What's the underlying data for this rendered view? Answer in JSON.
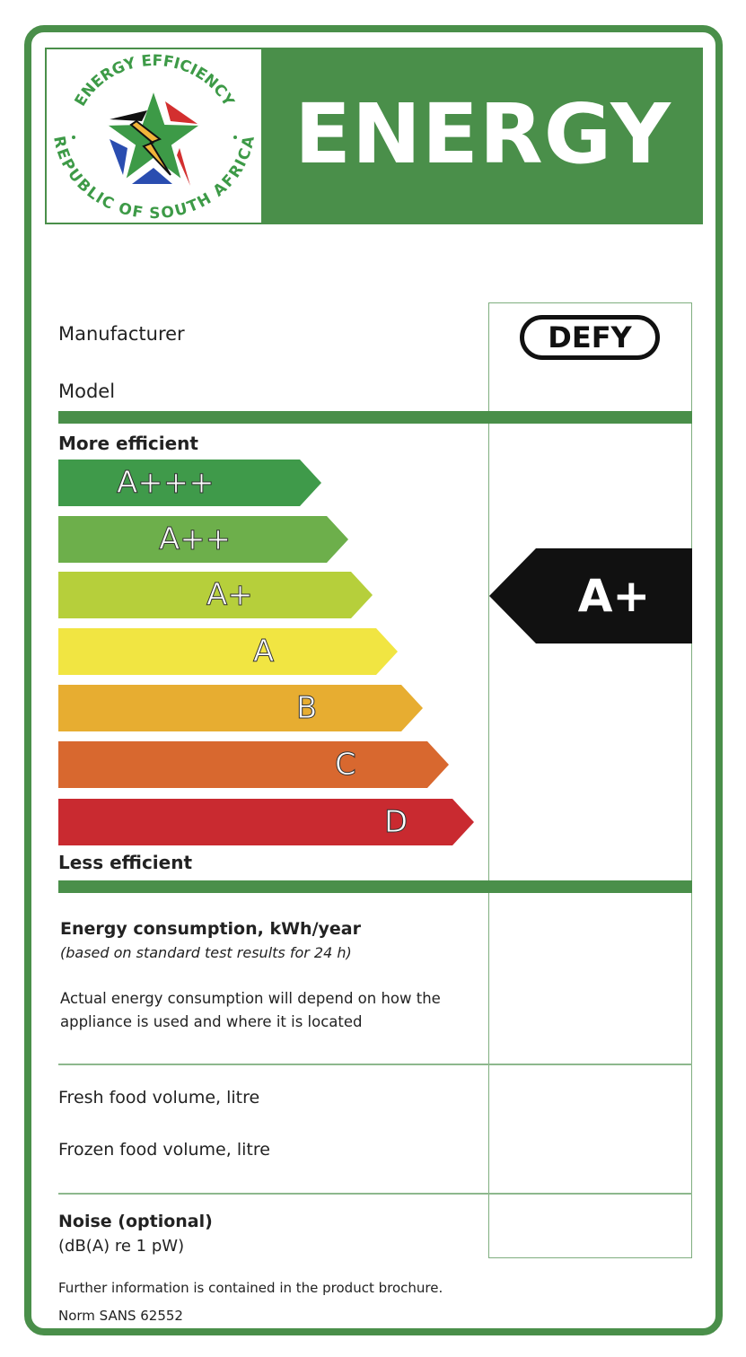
{
  "header": {
    "logo": {
      "top_text": "ENERGY EFFICIENCY",
      "bottom_text": "REPUBLIC OF SOUTH AFRICA"
    },
    "title": "ENERGY"
  },
  "manufacturer": {
    "label": "Manufacturer",
    "brand_logo": "DEFY"
  },
  "model": {
    "label": "Model"
  },
  "scale": {
    "top_label": "More efficient",
    "bottom_label": "Less efficient",
    "classes": [
      {
        "label": "A+++",
        "color": "#3f9a4a"
      },
      {
        "label": "A++",
        "color": "#6daf4b"
      },
      {
        "label": "A+",
        "color": "#b6cf3b"
      },
      {
        "label": "A",
        "color": "#f1e542"
      },
      {
        "label": "B",
        "color": "#e7ad31"
      },
      {
        "label": "C",
        "color": "#d8682f"
      },
      {
        "label": "D",
        "color": "#c92a30"
      }
    ],
    "rating": {
      "label": "A+",
      "color": "#111111"
    }
  },
  "consumption": {
    "title": "Energy consumption, kWh/year",
    "subtitle": "(based on standard test results for 24 h)",
    "note_line1": "Actual energy consumption will depend on how the",
    "note_line2": "appliance is used and where it is located"
  },
  "volumes": {
    "fresh": "Fresh food volume, litre",
    "frozen": "Frozen food volume, litre"
  },
  "noise": {
    "title": "Noise (optional)",
    "unit": "(dB(A) re 1 pW)"
  },
  "footer": {
    "info": "Further information is contained in the product brochure.",
    "norm": "Norm SANS 62552"
  }
}
